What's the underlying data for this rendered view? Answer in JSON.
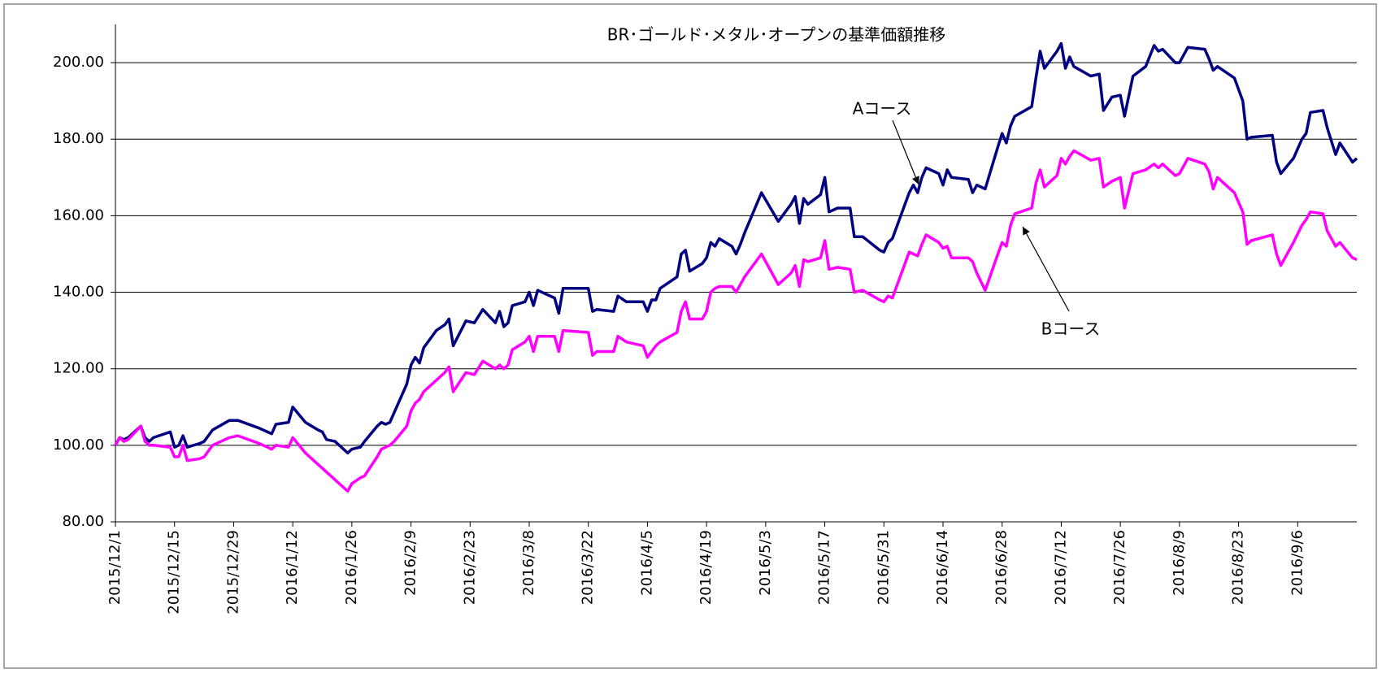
{
  "chart_data": {
    "type": "line",
    "title": "BR･ゴールド･メタル･オープンの基準価額推移",
    "annotations": [
      "Aコース",
      "Bコース"
    ],
    "x": [
      "2015/12/1",
      "2015/12/2",
      "2015/12/3",
      "2015/12/4",
      "2015/12/7",
      "2015/12/8",
      "2015/12/9",
      "2015/12/10",
      "2015/12/14",
      "2015/12/15",
      "2015/12/16",
      "2015/12/17",
      "2015/12/18",
      "2015/12/21",
      "2015/12/22",
      "2015/12/24",
      "2015/12/28",
      "2015/12/30",
      "2016/1/4",
      "2016/1/6",
      "2016/1/7",
      "2016/1/8",
      "2016/1/11",
      "2016/1/12",
      "2016/1/15",
      "2016/1/18",
      "2016/1/19",
      "2016/1/20",
      "2016/1/22",
      "2016/1/25",
      "2016/1/26",
      "2016/1/28",
      "2016/1/29",
      "2016/2/1",
      "2016/2/2",
      "2016/2/3",
      "2016/2/4",
      "2016/2/5",
      "2016/2/8",
      "2016/2/9",
      "2016/2/10",
      "2016/2/11",
      "2016/2/12",
      "2016/2/15",
      "2016/2/17",
      "2016/2/18",
      "2016/2/19",
      "2016/2/22",
      "2016/2/24",
      "2016/2/26",
      "2016/2/29",
      "2016/3/1",
      "2016/3/2",
      "2016/3/3",
      "2016/3/4",
      "2016/3/7",
      "2016/3/8",
      "2016/3/9",
      "2016/3/10",
      "2016/3/14",
      "2016/3/15",
      "2016/3/16",
      "2016/3/22",
      "2016/3/23",
      "2016/3/24",
      "2016/3/28",
      "2016/3/29",
      "2016/3/31",
      "2016/4/4",
      "2016/4/5",
      "2016/4/6",
      "2016/4/7",
      "2016/4/8",
      "2016/4/12",
      "2016/4/13",
      "2016/4/14",
      "2016/4/15",
      "2016/4/18",
      "2016/4/19",
      "2016/4/20",
      "2016/4/21",
      "2016/4/22",
      "2016/4/25",
      "2016/4/26",
      "2016/4/27",
      "2016/4/28",
      "2016/5/2",
      "2016/5/6",
      "2016/5/9",
      "2016/5/10",
      "2016/5/11",
      "2016/5/12",
      "2016/5/13",
      "2016/5/16",
      "2016/5/17",
      "2016/5/18",
      "2016/5/20",
      "2016/5/23",
      "2016/5/24",
      "2016/5/26",
      "2016/5/30",
      "2016/5/31",
      "2016/6/1",
      "2016/6/2",
      "2016/6/6",
      "2016/6/7",
      "2016/6/8",
      "2016/6/9",
      "2016/6/10",
      "2016/6/13",
      "2016/6/14",
      "2016/6/15",
      "2016/6/16",
      "2016/6/20",
      "2016/6/21",
      "2016/6/22",
      "2016/6/24",
      "2016/6/27",
      "2016/6/28",
      "2016/6/29",
      "2016/6/30",
      "2016/7/1",
      "2016/7/5",
      "2016/7/6",
      "2016/7/7",
      "2016/7/8",
      "2016/7/11",
      "2016/7/12",
      "2016/7/13",
      "2016/7/14",
      "2016/7/15",
      "2016/7/19",
      "2016/7/21",
      "2016/7/22",
      "2016/7/24",
      "2016/7/26",
      "2016/7/27",
      "2016/7/29",
      "2016/8/1",
      "2016/8/3",
      "2016/8/4",
      "2016/8/5",
      "2016/8/8",
      "2016/8/9",
      "2016/8/11",
      "2016/8/15",
      "2016/8/16",
      "2016/8/17",
      "2016/8/18",
      "2016/8/22",
      "2016/8/24",
      "2016/8/25",
      "2016/8/26",
      "2016/8/31",
      "2016/9/1",
      "2016/9/2",
      "2016/9/5",
      "2016/9/7",
      "2016/9/8",
      "2016/9/9",
      "2016/9/12",
      "2016/9/13",
      "2016/9/15",
      "2016/9/16",
      "2016/9/19",
      "2016/9/20"
    ],
    "series": [
      {
        "name": "Aコース",
        "color": "#000080",
        "values": [
          100,
          102,
          101.5,
          102,
          105,
          102,
          101,
          102,
          103.5,
          99.5,
          100,
          102.5,
          99.5,
          100.5,
          101,
          104,
          106.5,
          106.5,
          104.5,
          103.5,
          103,
          105.5,
          106,
          110,
          106,
          104,
          103.5,
          101.5,
          101,
          98,
          99,
          99.5,
          101,
          105,
          106,
          105.5,
          106,
          108.5,
          116,
          121,
          123,
          121.5,
          125.5,
          130,
          131.5,
          133,
          126,
          132.5,
          132,
          135.5,
          132,
          135,
          131,
          132,
          136.5,
          137.5,
          140,
          136.5,
          140.5,
          138.5,
          134.5,
          141,
          141,
          135,
          135.5,
          135,
          139,
          137.5,
          137.5,
          135,
          138,
          138,
          141,
          144,
          150,
          151,
          145.5,
          147.5,
          149,
          153,
          152,
          154,
          152,
          150,
          152.5,
          155.5,
          166,
          158.5,
          163,
          165,
          158,
          164.5,
          163,
          165.5,
          170,
          161,
          162,
          162,
          154.5,
          154.5,
          151,
          150.5,
          153,
          154,
          166,
          168,
          166,
          170,
          172.5,
          171,
          168,
          172,
          170,
          169.5,
          166,
          168,
          167,
          178,
          181.5,
          179,
          183.5,
          186,
          188.5,
          196,
          203,
          198.5,
          203,
          205,
          198.5,
          201.5,
          199,
          196.5,
          197,
          187.5,
          191,
          191.5,
          186,
          196.5,
          199,
          204.5,
          203,
          203.5,
          200,
          200,
          204,
          203.5,
          201,
          198,
          199,
          196,
          190,
          180,
          180.5,
          181,
          174,
          171,
          175,
          180,
          181.5,
          187,
          187.5,
          183,
          176,
          179,
          174,
          175
        ]
      },
      {
        "name": "Bコース",
        "color": "#ff00ff",
        "values": [
          100,
          102,
          101,
          101.5,
          105,
          101,
          100,
          100,
          99.5,
          97,
          97,
          100,
          96,
          96.5,
          97,
          100,
          102,
          102.5,
          100.5,
          99.5,
          99,
          100,
          99.5,
          102,
          98,
          95,
          94,
          93,
          91,
          88,
          90,
          91.5,
          92,
          97,
          99,
          99.5,
          100,
          101,
          105,
          109,
          111,
          112,
          114,
          117,
          119,
          120.5,
          114,
          119,
          118.5,
          122,
          120,
          121,
          120,
          121,
          125,
          127,
          128.5,
          124.5,
          128.5,
          128.5,
          124.5,
          130,
          129.5,
          123.5,
          124.5,
          124.5,
          128.5,
          127,
          126,
          123,
          124.5,
          126,
          127,
          129.5,
          135,
          137.5,
          133,
          133,
          135,
          140,
          141,
          141.5,
          141.5,
          140,
          142,
          144,
          150,
          142,
          145,
          147,
          141.5,
          148.5,
          148,
          149,
          153.5,
          146,
          146.5,
          146,
          140,
          140.5,
          138,
          137.5,
          139,
          138.5,
          150.5,
          150,
          149.5,
          152.5,
          155,
          153,
          151.5,
          152,
          149,
          149,
          148,
          145,
          140.5,
          150,
          153,
          152,
          157.5,
          160.5,
          162,
          168.5,
          172,
          167.5,
          170.5,
          175,
          173.5,
          175.5,
          177,
          174.5,
          175,
          167.5,
          169,
          170,
          162,
          171,
          172,
          173.5,
          172.5,
          173.5,
          170.5,
          171,
          175,
          173.5,
          171.5,
          167,
          170,
          166,
          161,
          152.5,
          153.5,
          155,
          150,
          147,
          153,
          157.5,
          159,
          161,
          160.5,
          156,
          152,
          153,
          149,
          148.5
        ]
      }
    ],
    "xlim": [
      "2015/12/1",
      "2016/9/20"
    ],
    "xticks": [
      "2015/12/1",
      "2015/12/15",
      "2015/12/29",
      "2016/1/12",
      "2016/1/26",
      "2016/2/9",
      "2016/2/23",
      "2016/3/8",
      "2016/3/22",
      "2016/4/5",
      "2016/4/19",
      "2016/5/3",
      "2016/5/17",
      "2016/5/31",
      "2016/6/14",
      "2016/6/28",
      "2016/7/12",
      "2016/7/26",
      "2016/8/9",
      "2016/8/23",
      "2016/9/6"
    ],
    "ylim": [
      80,
      210
    ],
    "yticks": [
      {
        "value": 80,
        "label": "80.00"
      },
      {
        "value": 100,
        "label": "100.00"
      },
      {
        "value": 120,
        "label": "120.00"
      },
      {
        "value": 140,
        "label": "140.00"
      },
      {
        "value": 160,
        "label": "160.00"
      },
      {
        "value": 180,
        "label": "180.00"
      },
      {
        "value": 200,
        "label": "200.00"
      }
    ],
    "grid": true
  }
}
